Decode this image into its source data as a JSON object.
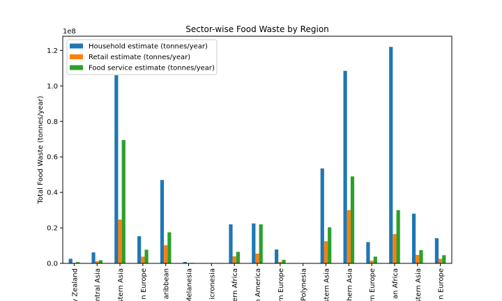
{
  "chart_data": {
    "type": "bar",
    "title": "Sector-wise Food Waste by Region",
    "xlabel": "",
    "ylabel": "Total Food Waste (tonnes/year)",
    "offset_label": "1e8",
    "ylim": [
      0,
      128000000
    ],
    "yticks": [
      0,
      20000000,
      40000000,
      60000000,
      80000000,
      100000000,
      120000000
    ],
    "ytick_labels": [
      "0.0",
      "0.2",
      "0.4",
      "0.6",
      "0.8",
      "1.0",
      "1.2"
    ],
    "legend_position": "top-left",
    "grid": false,
    "categories": [
      "y Zealand",
      "ntral Asia",
      "stern Asia",
      "n Europe",
      "aribbean",
      "Melanesia",
      "icronesia",
      "ern Africa",
      "n America",
      "rn Europe",
      "Polynesia",
      "stern Asia",
      "hern Asia",
      "rn Europe",
      "an Africa",
      "stern Asia",
      "n Europe"
    ],
    "series": [
      {
        "name": "Household estimate (tonnes/year)",
        "color": "#1f77b4",
        "values": [
          2600000,
          6200000,
          106000000,
          15300000,
          47000000,
          800000,
          0,
          22000000,
          22500000,
          7800000,
          0,
          53500000,
          108500000,
          12000000,
          122000000,
          28000000,
          14200000
        ]
      },
      {
        "name": "Retail estimate (tonnes/year)",
        "color": "#ff7f0e",
        "values": [
          300000,
          1200000,
          24700000,
          3800000,
          10200000,
          100000,
          0,
          4000000,
          5500000,
          800000,
          0,
          12500000,
          30000000,
          1500000,
          16500000,
          4800000,
          2600000
        ]
      },
      {
        "name": "Food service estimate (tonnes/year)",
        "color": "#2ca02c",
        "values": [
          700000,
          1800000,
          69500000,
          7700000,
          17500000,
          300000,
          0,
          6500000,
          22000000,
          2000000,
          0,
          20300000,
          49000000,
          3800000,
          30000000,
          7500000,
          4600000
        ]
      }
    ]
  }
}
